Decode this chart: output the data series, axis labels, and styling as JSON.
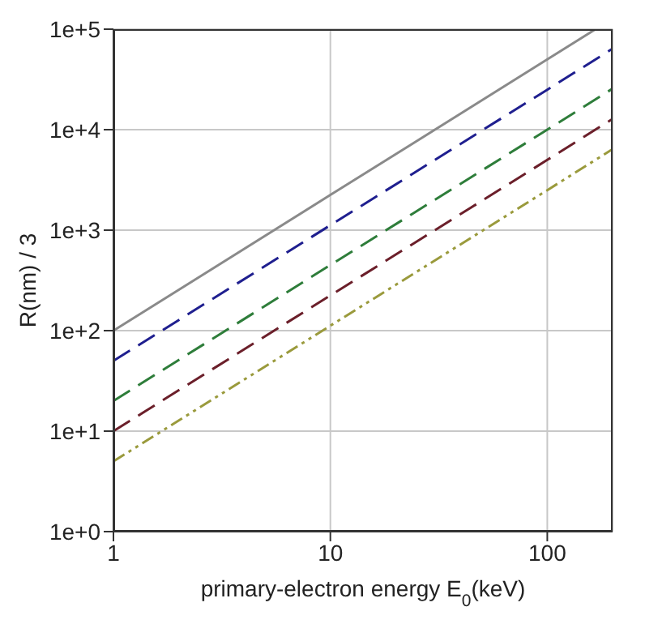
{
  "chart_data": {
    "type": "line",
    "xlabel": "primary-electron energy E$_{0}$(keV)",
    "ylabel": "R(nm) / 3",
    "log": "xy",
    "grid": true,
    "legend": false,
    "marker": "none",
    "xlim": [
      1,
      200
    ],
    "xticks": [
      1,
      10,
      100
    ],
    "ylim": [
      1,
      100000
    ],
    "yticks": [
      {
        "value": 1,
        "label": "1e+0"
      },
      {
        "value": 10,
        "label": "1e+1"
      },
      {
        "value": 100,
        "label": "1e+2"
      },
      {
        "value": 1000,
        "label": "1e+3"
      },
      {
        "value": 10000,
        "label": "1e+4"
      },
      {
        "value": 100000,
        "label": "1e+5"
      }
    ],
    "series": [
      {
        "color": "#8a8a8a",
        "line_style": "solid",
        "x": [
          1,
          10,
          100,
          167
        ],
        "values": [
          100,
          2240,
          50000,
          100000
        ]
      },
      {
        "color": "#1f1f8f",
        "line_style": "dashed",
        "x": [
          1,
          10,
          100,
          200
        ],
        "values": [
          50,
          1120,
          25000,
          64000
        ]
      },
      {
        "color": "#2e7d3a",
        "line_style": "dashed",
        "x": [
          1,
          10,
          100,
          200
        ],
        "values": [
          20,
          450,
          10000,
          25600
        ]
      },
      {
        "color": "#6b1f2a",
        "line_style": "dashed",
        "x": [
          1,
          10,
          100,
          200
        ],
        "values": [
          10,
          224,
          5000,
          12800
        ]
      },
      {
        "color": "#9a9a3c",
        "line_style": "dotted",
        "x": [
          1,
          10,
          100,
          200
        ],
        "values": [
          5,
          112,
          2500,
          6400
        ]
      }
    ]
  }
}
